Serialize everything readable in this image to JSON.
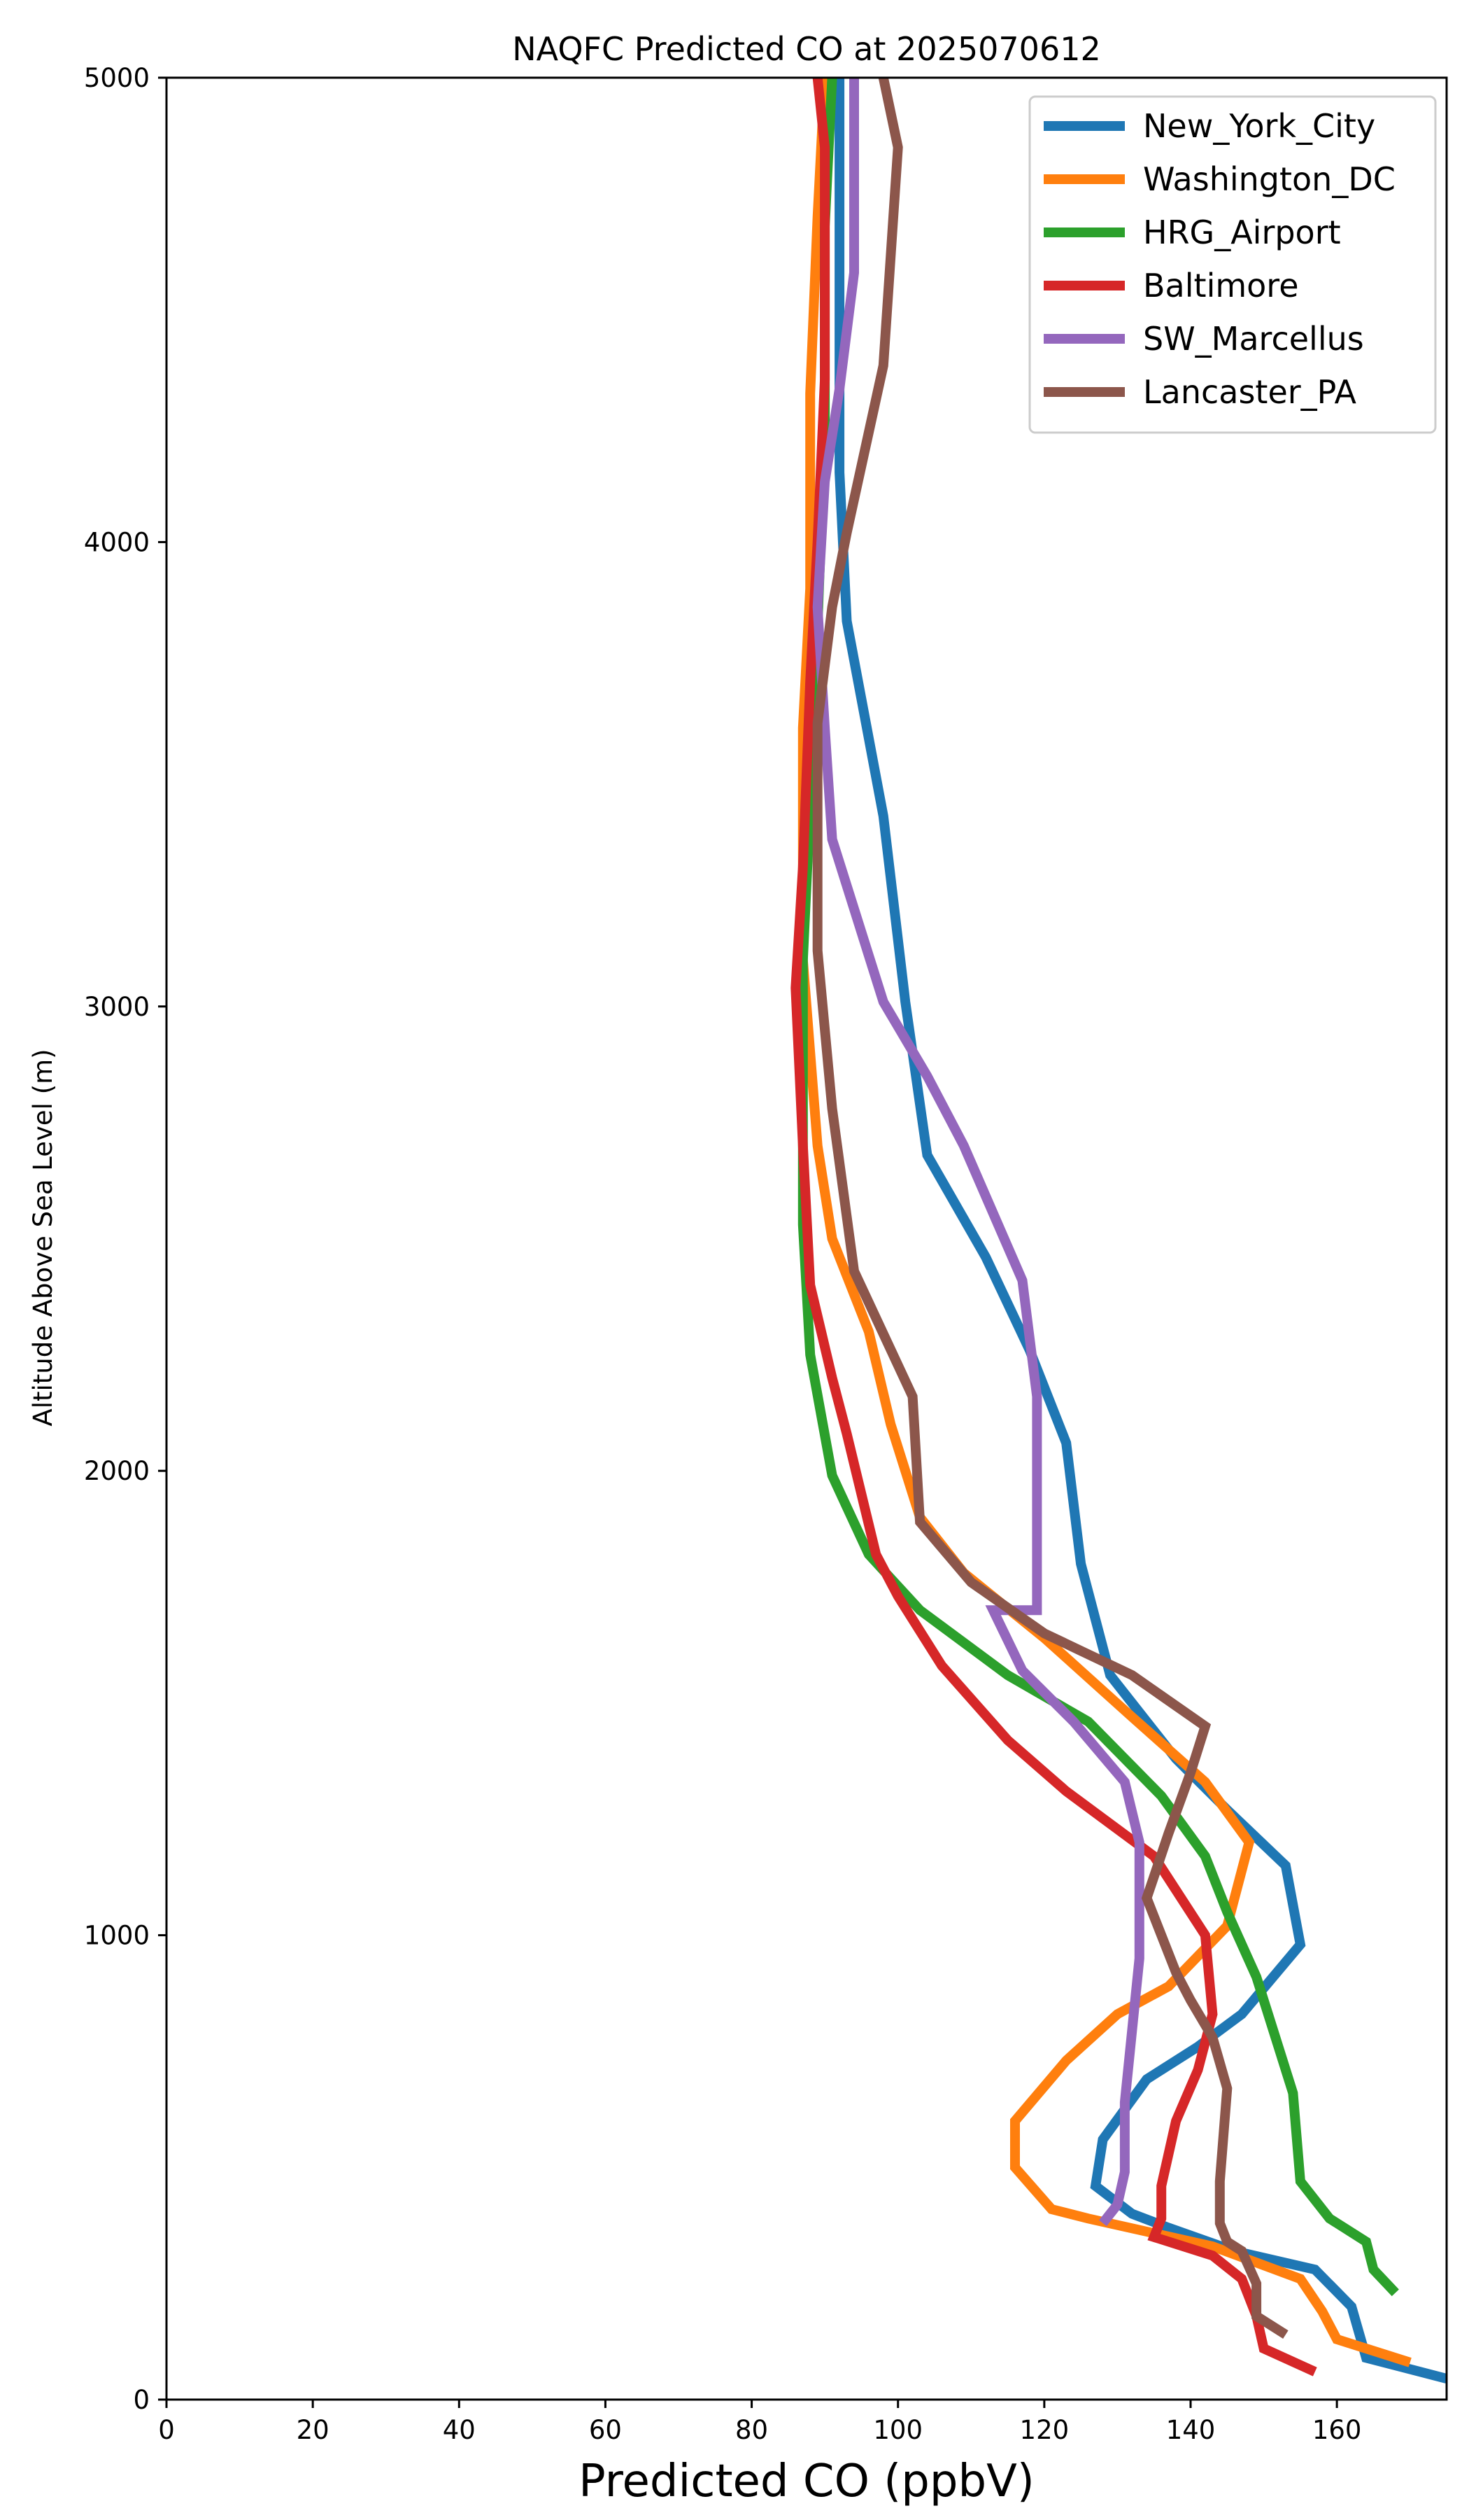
{
  "chart_data": {
    "type": "line",
    "title": "NAQFC Predicted CO at 2025070612",
    "xlabel": "Predicted CO (ppbV)",
    "ylabel": "Altitude Above Sea Level (m)",
    "xlim": [
      0,
      175
    ],
    "ylim": [
      0,
      5000
    ],
    "xticks": [
      0,
      20,
      40,
      60,
      80,
      100,
      120,
      140,
      160
    ],
    "yticks": [
      0,
      1000,
      2000,
      3000,
      4000,
      5000
    ],
    "grid": false,
    "legend_position": "top-right",
    "series": [
      {
        "name": "New_York_City",
        "color": "#1f77b4",
        "points": [
          [
            175,
            45
          ],
          [
            164,
            90
          ],
          [
            162,
            200
          ],
          [
            157,
            280
          ],
          [
            146,
            320
          ],
          [
            137,
            370
          ],
          [
            132,
            400
          ],
          [
            127,
            460
          ],
          [
            128,
            560
          ],
          [
            134,
            690
          ],
          [
            141,
            760
          ],
          [
            147,
            830
          ],
          [
            155,
            980
          ],
          [
            153,
            1150
          ],
          [
            145,
            1270
          ],
          [
            138,
            1380
          ],
          [
            129,
            1560
          ],
          [
            125,
            1800
          ],
          [
            123,
            2060
          ],
          [
            118,
            2260
          ],
          [
            112,
            2460
          ],
          [
            104,
            2680
          ],
          [
            101,
            3010
          ],
          [
            98,
            3410
          ],
          [
            93,
            3830
          ],
          [
            92,
            4150
          ],
          [
            92,
            4570
          ],
          [
            92,
            5000
          ]
        ]
      },
      {
        "name": "Washington_DC",
        "color": "#ff7f0e",
        "points": [
          [
            170,
            80
          ],
          [
            160,
            130
          ],
          [
            158,
            190
          ],
          [
            155,
            260
          ],
          [
            143,
            330
          ],
          [
            126,
            390
          ],
          [
            121,
            410
          ],
          [
            116,
            500
          ],
          [
            116,
            600
          ],
          [
            123,
            730
          ],
          [
            130,
            830
          ],
          [
            137,
            890
          ],
          [
            145,
            1020
          ],
          [
            148,
            1200
          ],
          [
            142,
            1330
          ],
          [
            132,
            1470
          ],
          [
            120,
            1640
          ],
          [
            109,
            1780
          ],
          [
            103,
            1900
          ],
          [
            99,
            2100
          ],
          [
            96,
            2300
          ],
          [
            91,
            2500
          ],
          [
            89,
            2700
          ],
          [
            87,
            3100
          ],
          [
            87,
            3600
          ],
          [
            88,
            3900
          ],
          [
            88,
            4320
          ],
          [
            89,
            4700
          ],
          [
            90,
            5000
          ]
        ]
      },
      {
        "name": "HRG_Airport",
        "color": "#2ca02c",
        "points": [
          [
            168,
            230
          ],
          [
            165,
            280
          ],
          [
            164,
            340
          ],
          [
            159,
            390
          ],
          [
            155,
            470
          ],
          [
            154,
            660
          ],
          [
            152,
            760
          ],
          [
            149,
            910
          ],
          [
            145,
            1050
          ],
          [
            142,
            1170
          ],
          [
            136,
            1300
          ],
          [
            126,
            1460
          ],
          [
            115,
            1560
          ],
          [
            103,
            1700
          ],
          [
            96,
            1820
          ],
          [
            91,
            1990
          ],
          [
            88,
            2250
          ],
          [
            87,
            2530
          ],
          [
            87,
            3100
          ],
          [
            88,
            3430
          ],
          [
            89,
            3820
          ],
          [
            90,
            4230
          ],
          [
            90,
            4680
          ],
          [
            91,
            5000
          ]
        ]
      },
      {
        "name": "Baltimore",
        "color": "#d62728",
        "points": [
          [
            157,
            60
          ],
          [
            150,
            110
          ],
          [
            149,
            180
          ],
          [
            147,
            260
          ],
          [
            143,
            310
          ],
          [
            135,
            350
          ],
          [
            136,
            390
          ],
          [
            136,
            460
          ],
          [
            138,
            600
          ],
          [
            141,
            710
          ],
          [
            143,
            830
          ],
          [
            142,
            1000
          ],
          [
            135,
            1170
          ],
          [
            123,
            1310
          ],
          [
            115,
            1420
          ],
          [
            106,
            1580
          ],
          [
            100,
            1730
          ],
          [
            97,
            1820
          ],
          [
            93,
            2080
          ],
          [
            91,
            2200
          ],
          [
            88,
            2400
          ],
          [
            87,
            2700
          ],
          [
            86,
            3040
          ],
          [
            87,
            3300
          ],
          [
            88,
            3700
          ],
          [
            89,
            4000
          ],
          [
            90,
            4350
          ],
          [
            90,
            4700
          ],
          [
            90,
            4850
          ],
          [
            89,
            5000
          ]
        ]
      },
      {
        "name": "SW_Marcellus",
        "color": "#9467bd",
        "points": [
          [
            128,
            380
          ],
          [
            130,
            420
          ],
          [
            131,
            490
          ],
          [
            131,
            640
          ],
          [
            133,
            950
          ],
          [
            133,
            1200
          ],
          [
            131,
            1330
          ],
          [
            124,
            1460
          ],
          [
            117,
            1570
          ],
          [
            113,
            1700
          ],
          [
            119,
            1700
          ],
          [
            119,
            2160
          ],
          [
            117,
            2410
          ],
          [
            109,
            2700
          ],
          [
            104,
            2850
          ],
          [
            98,
            3010
          ],
          [
            91,
            3360
          ],
          [
            90,
            3600
          ],
          [
            89,
            3860
          ],
          [
            90,
            4130
          ],
          [
            92,
            4330
          ],
          [
            94,
            4580
          ],
          [
            94,
            5000
          ]
        ]
      },
      {
        "name": "Lancaster_PA",
        "color": "#8c564b",
        "points": [
          [
            153,
            140
          ],
          [
            149,
            180
          ],
          [
            149,
            250
          ],
          [
            147,
            320
          ],
          [
            145,
            340
          ],
          [
            144,
            380
          ],
          [
            144,
            470
          ],
          [
            145,
            670
          ],
          [
            143,
            780
          ],
          [
            140,
            860
          ],
          [
            138,
            920
          ],
          [
            134,
            1080
          ],
          [
            137,
            1220
          ],
          [
            140,
            1350
          ],
          [
            142,
            1450
          ],
          [
            132,
            1560
          ],
          [
            120,
            1650
          ],
          [
            110,
            1760
          ],
          [
            103,
            1890
          ],
          [
            102,
            2160
          ],
          [
            94,
            2430
          ],
          [
            91,
            2780
          ],
          [
            89,
            3120
          ],
          [
            89,
            3610
          ],
          [
            91,
            3860
          ],
          [
            93,
            4020
          ],
          [
            98,
            4380
          ],
          [
            100,
            4850
          ],
          [
            98,
            5000
          ]
        ]
      }
    ]
  }
}
